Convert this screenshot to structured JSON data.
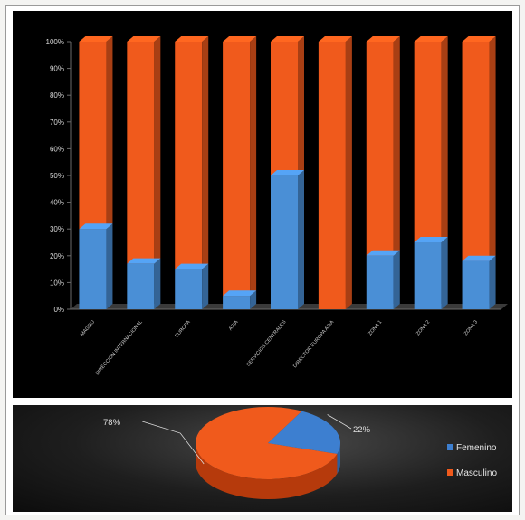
{
  "chart_data": [
    {
      "type": "bar",
      "stacked": true,
      "percent": true,
      "three_d": true,
      "categories": [
        "MAGRO",
        "DIRECCION INTERNACIONAL",
        "EUROPA",
        "ASIA",
        "SERVICIOS CENTRALES",
        "DIRECTOR EUROPA ASIA",
        "ZONA 1",
        "ZONA 2",
        "ZONA 3"
      ],
      "series": [
        {
          "name": "Femenino",
          "values": [
            30,
            17,
            15,
            5,
            50,
            0,
            20,
            25,
            18
          ]
        },
        {
          "name": "Masculino",
          "values": [
            70,
            83,
            85,
            95,
            50,
            100,
            80,
            75,
            82
          ]
        }
      ],
      "yticks": [
        "0%",
        "10%",
        "20%",
        "30%",
        "40%",
        "50%",
        "60%",
        "70%",
        "80%",
        "90%",
        "100%"
      ],
      "ylim": [
        0,
        100
      ],
      "grid": false,
      "colors": {
        "Femenino": "#4a8fd6",
        "Masculino": "#f05a1c"
      },
      "background": "#000000"
    },
    {
      "type": "pie",
      "three_d": true,
      "slices": [
        {
          "name": "Femenino",
          "value": 22,
          "label": "22%"
        },
        {
          "name": "Masculino",
          "value": 78,
          "label": "78%"
        }
      ],
      "legend": {
        "position": "right",
        "items": [
          {
            "label": "Femenino",
            "color": "#3d7fd0"
          },
          {
            "label": "Masculino",
            "color": "#f05a1c"
          }
        ]
      },
      "colors": {
        "Femenino": "#3d7fd0",
        "Masculino": "#f05a1c"
      }
    }
  ]
}
